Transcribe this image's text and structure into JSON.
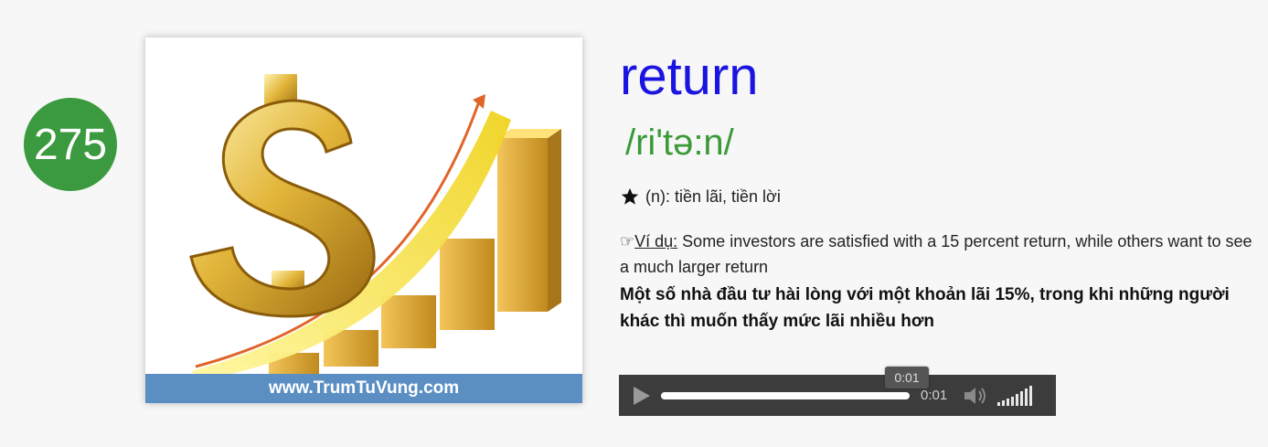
{
  "index_badge": "275",
  "card": {
    "footer_text": "www.TrumTuVung.com",
    "image": "dollar-sign-growth-chart-illustration"
  },
  "word": "return",
  "pronunciation": "/ri'tə:n/",
  "definition": {
    "icon": "star-icon",
    "text": "(n): tiền lãi, tiền lời"
  },
  "example": {
    "icon": "pointing-hand-icon",
    "label": "Ví dụ:",
    "text": " Some investors are satisfied with a 15 percent return, while others want to see a much larger return"
  },
  "translation": "Một số nhà đầu tư hài lòng với một khoản lãi 15%, trong khi những người khác thì muốn thấy mức lãi nhiều hơn",
  "audio_player": {
    "time": "0:01",
    "tooltip": "0:01",
    "progress": 0.99,
    "colors": {
      "background": "#3c3c3c",
      "track": "#ffffff"
    }
  },
  "colors": {
    "word": "#1a14e0",
    "pronunciation": "#3a9a38",
    "badge": "#3b9a3f",
    "footer": "#5b8fc4"
  }
}
